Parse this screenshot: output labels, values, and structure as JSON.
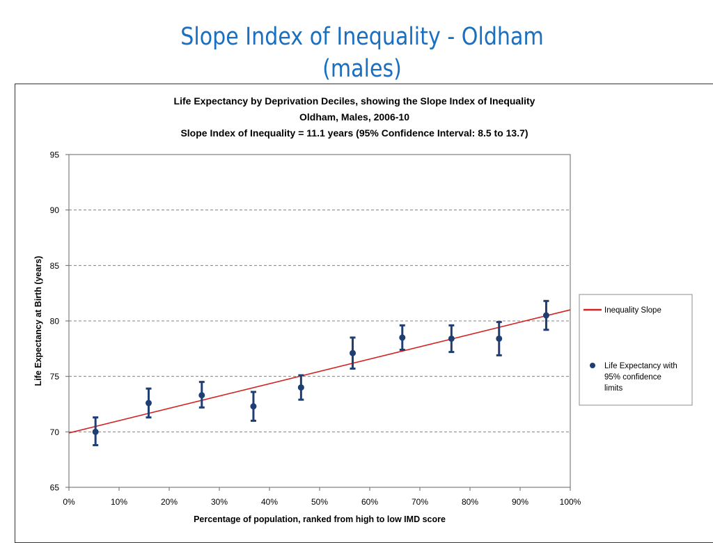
{
  "slide": {
    "title_line1": "Slope Index of Inequality - Oldham",
    "title_line2": "(males)"
  },
  "chart_data": {
    "type": "scatter",
    "title": [
      "Life Expectancy by Deprivation Deciles, showing the Slope Index of Inequality",
      "Oldham, Males, 2006-10",
      "Slope Index of Inequality = 11.1 years (95% Confidence Interval: 8.5 to 13.7)"
    ],
    "xlabel": "Percentage of population, ranked from high to low IMD score",
    "ylabel": "Life Expectancy at Birth (years)",
    "xlim": [
      0,
      100
    ],
    "ylim": [
      65,
      95
    ],
    "x_ticks": [
      0,
      10,
      20,
      30,
      40,
      50,
      60,
      70,
      80,
      90,
      100
    ],
    "x_tick_labels": [
      "0%",
      "10%",
      "20%",
      "30%",
      "40%",
      "50%",
      "60%",
      "70%",
      "80%",
      "90%",
      "100%"
    ],
    "y_ticks": [
      65,
      70,
      75,
      80,
      85,
      90,
      95
    ],
    "y_tick_labels": [
      "65",
      "70",
      "75",
      "80",
      "85",
      "90",
      "95"
    ],
    "grid": "horizontal dashed",
    "legend_position": "right",
    "series": [
      {
        "name": "Life Expectancy with 95% confidence limits",
        "legend_lines": [
          "Life Expectancy with",
          "95% confidence",
          "limits"
        ],
        "color": "#1f3f73",
        "x": [
          5.3,
          15.9,
          26.5,
          36.8,
          46.3,
          56.6,
          66.5,
          76.3,
          85.8,
          95.2
        ],
        "y": [
          70.0,
          72.6,
          73.3,
          72.3,
          74.0,
          77.1,
          78.5,
          78.4,
          78.4,
          80.5
        ],
        "lower": [
          68.8,
          71.3,
          72.2,
          71.0,
          72.9,
          75.7,
          77.4,
          77.2,
          76.9,
          79.2
        ],
        "upper": [
          71.3,
          73.9,
          74.5,
          73.6,
          75.1,
          78.5,
          79.6,
          79.6,
          79.9,
          81.8
        ]
      },
      {
        "name": "Inequality Slope",
        "type": "line",
        "color": "#d42020",
        "x": [
          0,
          100
        ],
        "y": [
          69.9,
          81.0
        ]
      }
    ]
  }
}
